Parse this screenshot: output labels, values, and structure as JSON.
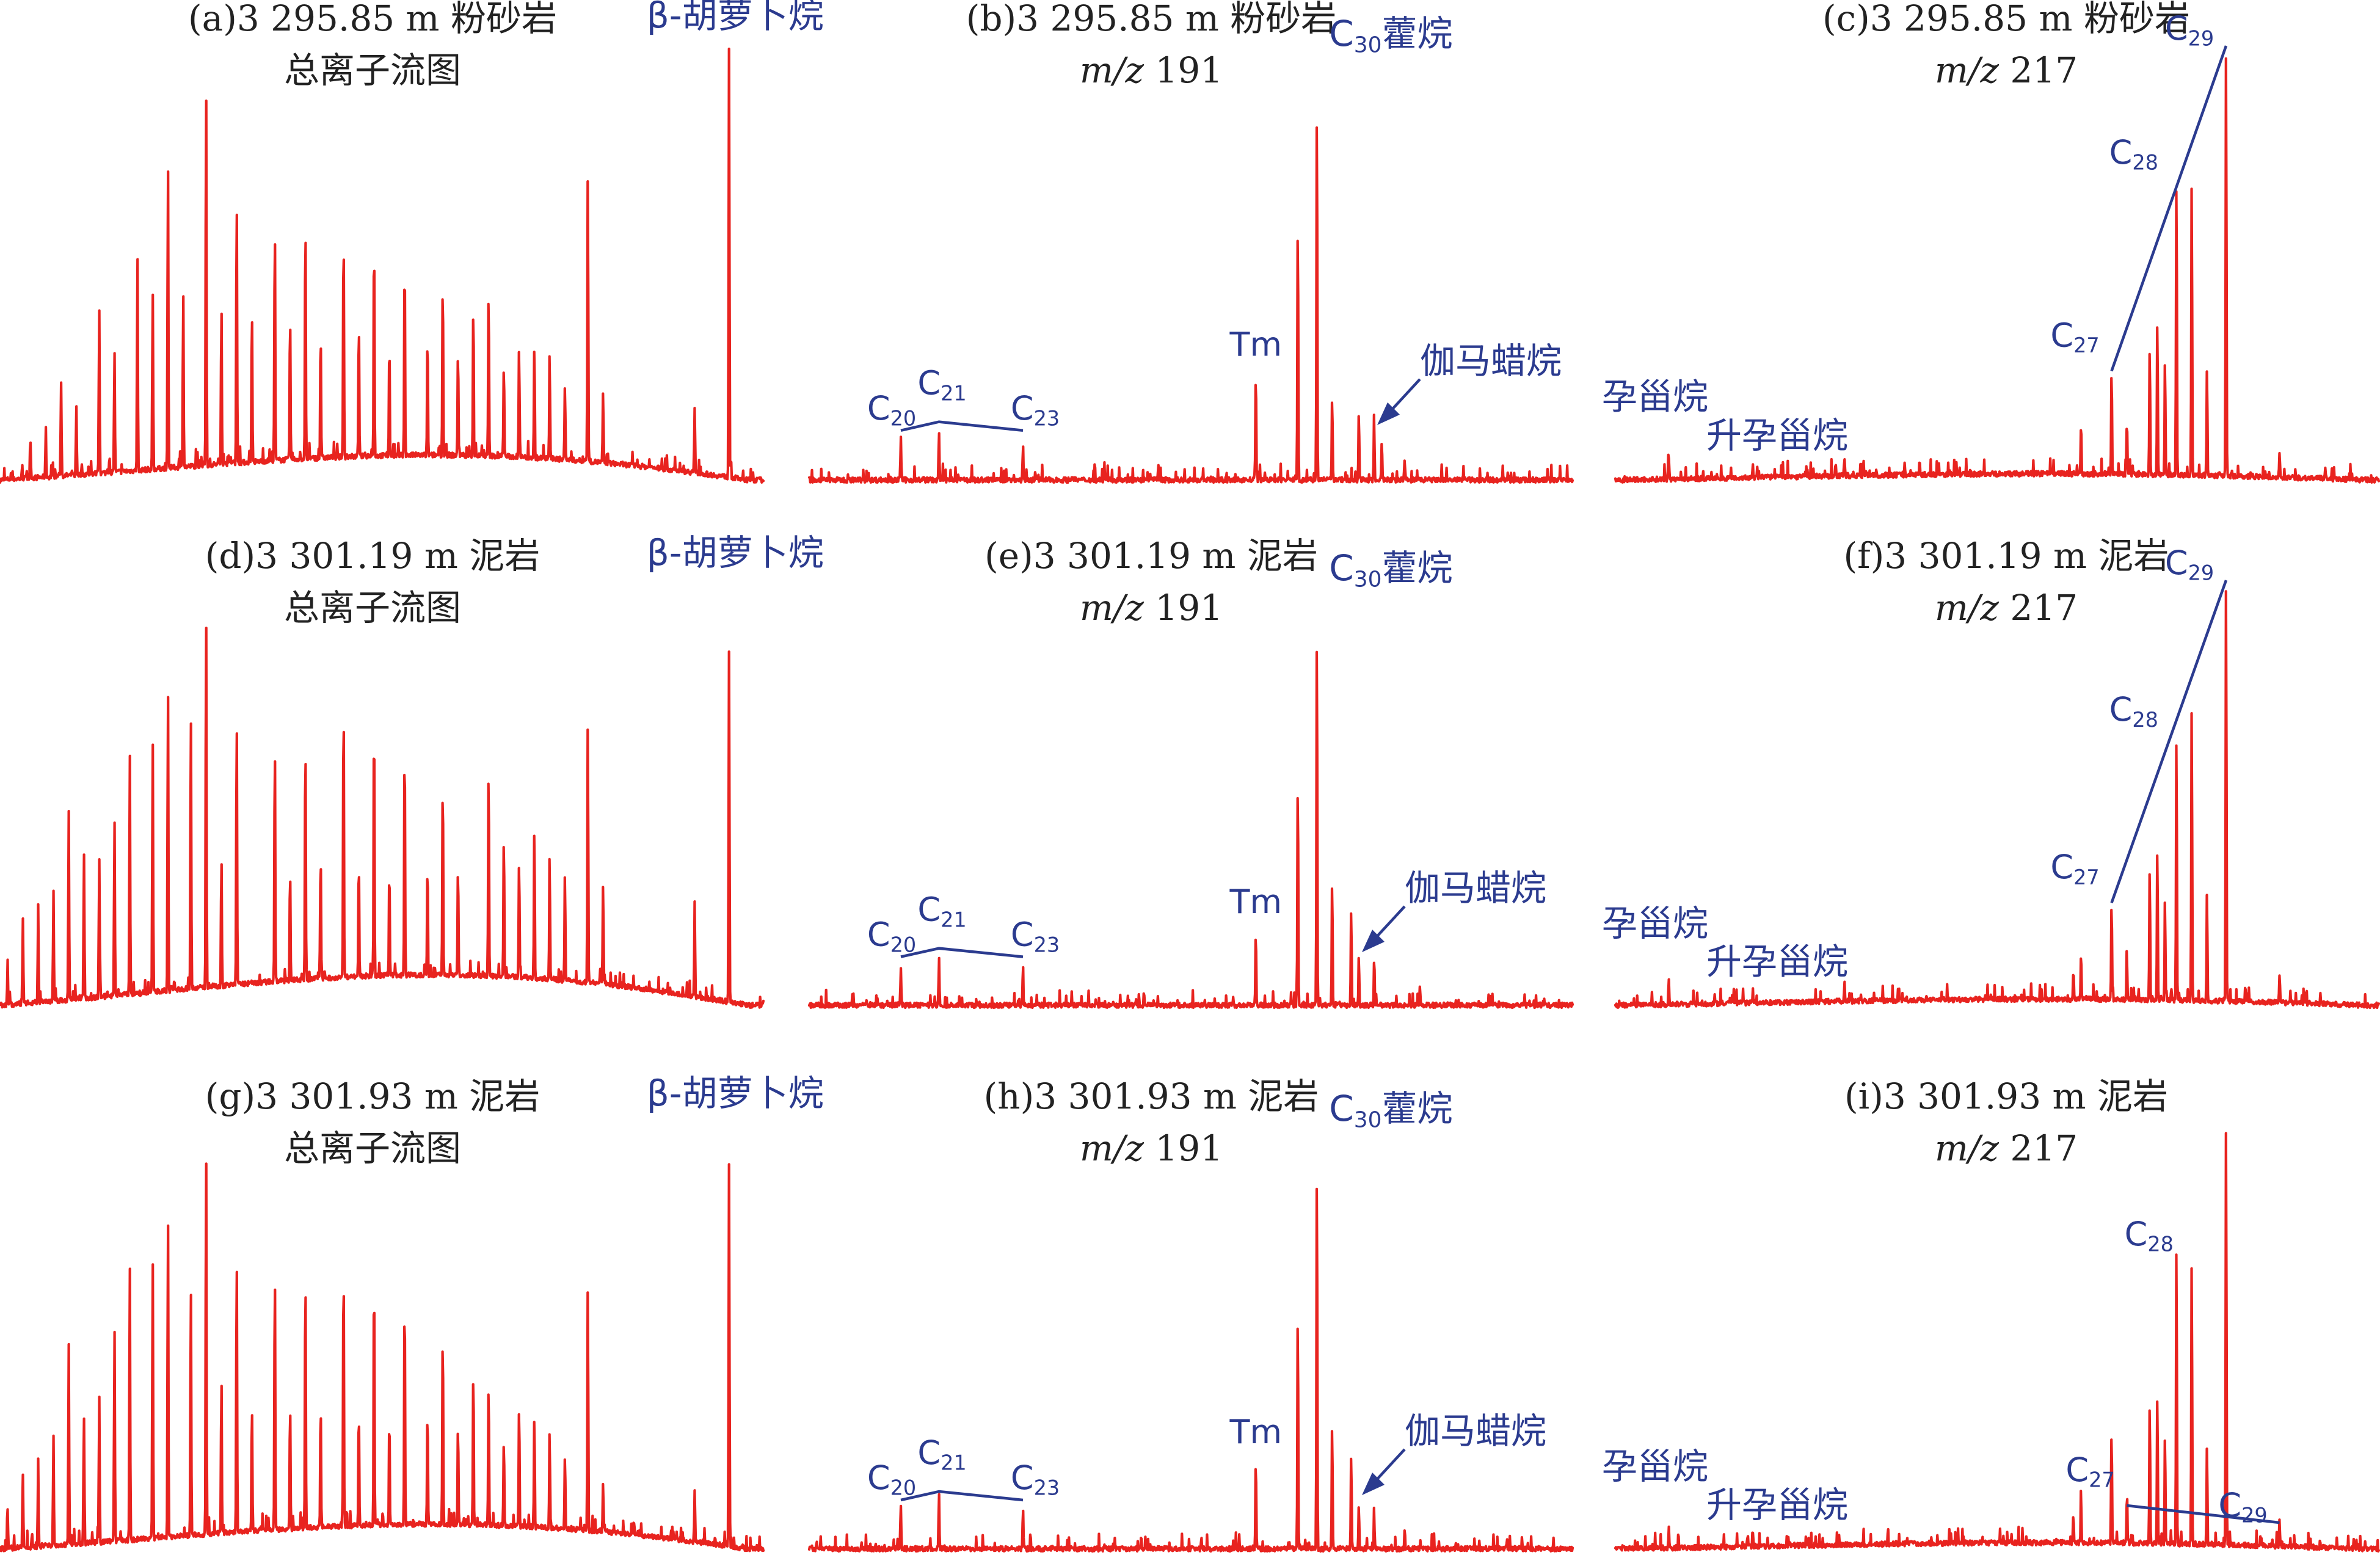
{
  "colors": {
    "trace": "#e8231f",
    "annotation": "#2b3b8f",
    "text": "#222222"
  },
  "chart_data": [
    {
      "id": "a",
      "type": "line",
      "kind": "tic",
      "title": "(a)3 295.85 m 粉砂岩",
      "subtitle": "总离子流图",
      "annotations": {
        "peak_label": "β-胡萝卜烷"
      },
      "series": [
        {
          "peaks": [
            [
              0.04,
              0.08
            ],
            [
              0.06,
              0.11
            ],
            [
              0.08,
              0.22
            ],
            [
              0.1,
              0.16
            ],
            [
              0.13,
              0.38
            ],
            [
              0.15,
              0.28
            ],
            [
              0.18,
              0.5
            ],
            [
              0.2,
              0.42
            ],
            [
              0.22,
              0.72
            ],
            [
              0.24,
              0.4
            ],
            [
              0.27,
              0.9
            ],
            [
              0.29,
              0.38
            ],
            [
              0.31,
              0.63
            ],
            [
              0.33,
              0.35
            ],
            [
              0.36,
              0.56
            ],
            [
              0.38,
              0.34
            ],
            [
              0.4,
              0.57
            ],
            [
              0.42,
              0.3
            ],
            [
              0.45,
              0.54
            ],
            [
              0.47,
              0.3
            ],
            [
              0.49,
              0.53
            ],
            [
              0.51,
              0.27
            ],
            [
              0.53,
              0.47
            ],
            [
              0.56,
              0.28
            ],
            [
              0.58,
              0.42
            ],
            [
              0.6,
              0.25
            ],
            [
              0.62,
              0.36
            ],
            [
              0.64,
              0.39
            ],
            [
              0.66,
              0.22
            ],
            [
              0.68,
              0.25
            ],
            [
              0.7,
              0.26
            ],
            [
              0.72,
              0.25
            ],
            [
              0.74,
              0.18
            ],
            [
              0.77,
              0.68
            ],
            [
              0.79,
              0.16
            ],
            [
              0.91,
              0.15
            ],
            [
              0.955,
              1.0
            ]
          ],
          "hump": 0.08
        }
      ]
    },
    {
      "id": "b",
      "type": "line",
      "kind": "m191",
      "title": "(b)3 295.85 m 粉砂岩",
      "subtitle_italic": "m/z",
      "subtitle_rest": " 191",
      "annotations": {
        "c20": "C20",
        "c21": "C21",
        "c23": "C23",
        "tm": "Tm",
        "c30": "C30藿烷",
        "gammacerane": "伽马蜡烷"
      },
      "series": [
        {
          "peaks": [
            [
              0.12,
              0.08
            ],
            [
              0.17,
              0.11
            ],
            [
              0.28,
              0.08
            ],
            [
              0.585,
              0.25
            ],
            [
              0.64,
              0.62
            ],
            [
              0.665,
              0.9
            ],
            [
              0.685,
              0.2
            ],
            [
              0.72,
              0.16
            ],
            [
              0.74,
              0.12
            ],
            [
              0.75,
              0.09
            ],
            [
              0.78,
              0.05
            ]
          ],
          "hump": 0.0
        }
      ]
    },
    {
      "id": "c",
      "type": "line",
      "kind": "m217",
      "title": "(c)3 295.85 m 粉砂岩",
      "subtitle_italic": "m/z",
      "subtitle_rest": " 217",
      "annotations": {
        "pregnane": "孕甾烷",
        "homopregnane": "升孕甾烷",
        "c27": "C27",
        "c28": "C28",
        "c29": "C29"
      },
      "series": [
        {
          "peaks": [
            [
              0.07,
              0.05
            ],
            [
              0.18,
              0.03
            ],
            [
              0.25,
              0.02
            ],
            [
              0.3,
              0.04
            ],
            [
              0.61,
              0.12
            ],
            [
              0.65,
              0.25
            ],
            [
              0.67,
              0.12
            ],
            [
              0.7,
              0.3
            ],
            [
              0.71,
              0.36
            ],
            [
              0.72,
              0.27
            ],
            [
              0.735,
              0.7
            ],
            [
              0.755,
              0.7
            ],
            [
              0.775,
              0.25
            ],
            [
              0.8,
              1.0
            ],
            [
              0.87,
              0.06
            ],
            [
              0.93,
              0.03
            ]
          ],
          "hump": 0.02
        }
      ]
    },
    {
      "id": "d",
      "type": "line",
      "kind": "tic",
      "title": "(d)3 301.19 m 泥岩",
      "subtitle": "总离子流图",
      "annotations": {
        "peak_label": "β-胡萝卜烷"
      },
      "series": [
        {
          "peaks": [
            [
              0.01,
              0.1
            ],
            [
              0.03,
              0.2
            ],
            [
              0.05,
              0.23
            ],
            [
              0.07,
              0.26
            ],
            [
              0.09,
              0.45
            ],
            [
              0.11,
              0.34
            ],
            [
              0.13,
              0.33
            ],
            [
              0.15,
              0.42
            ],
            [
              0.17,
              0.58
            ],
            [
              0.2,
              0.6
            ],
            [
              0.22,
              0.72
            ],
            [
              0.25,
              0.66
            ],
            [
              0.27,
              0.9
            ],
            [
              0.29,
              0.31
            ],
            [
              0.31,
              0.64
            ],
            [
              0.36,
              0.58
            ],
            [
              0.38,
              0.27
            ],
            [
              0.4,
              0.59
            ],
            [
              0.42,
              0.3
            ],
            [
              0.45,
              0.67
            ],
            [
              0.47,
              0.28
            ],
            [
              0.49,
              0.64
            ],
            [
              0.51,
              0.26
            ],
            [
              0.53,
              0.57
            ],
            [
              0.56,
              0.27
            ],
            [
              0.58,
              0.48
            ],
            [
              0.6,
              0.26
            ],
            [
              0.64,
              0.51
            ],
            [
              0.66,
              0.34
            ],
            [
              0.68,
              0.28
            ],
            [
              0.7,
              0.36
            ],
            [
              0.72,
              0.3
            ],
            [
              0.74,
              0.26
            ],
            [
              0.77,
              0.62
            ],
            [
              0.79,
              0.24
            ],
            [
              0.91,
              0.22
            ],
            [
              0.955,
              0.83
            ]
          ],
          "hump": 0.1
        }
      ]
    },
    {
      "id": "e",
      "type": "line",
      "kind": "m191",
      "title": "(e)3 301.19 m 泥岩",
      "subtitle_italic": "m/z",
      "subtitle_rest": " 191",
      "annotations": {
        "c20": "C20",
        "c21": "C21",
        "c23": "C23",
        "tm": "Tm",
        "c30": "C30藿烷",
        "gammacerane": "伽马蜡烷"
      },
      "series": [
        {
          "peaks": [
            [
              0.12,
              0.09
            ],
            [
              0.17,
              0.11
            ],
            [
              0.28,
              0.09
            ],
            [
              0.585,
              0.18
            ],
            [
              0.64,
              0.55
            ],
            [
              0.665,
              0.9
            ],
            [
              0.685,
              0.3
            ],
            [
              0.71,
              0.23
            ],
            [
              0.72,
              0.12
            ],
            [
              0.74,
              0.09
            ],
            [
              0.8,
              0.04
            ]
          ],
          "hump": 0.0
        }
      ]
    },
    {
      "id": "f",
      "type": "line",
      "kind": "m217",
      "title": "(f)3 301.19 m 泥岩",
      "subtitle_italic": "m/z",
      "subtitle_rest": " 217",
      "annotations": {
        "pregnane": "孕甾烷",
        "homopregnane": "升孕甾烷",
        "c27": "C27",
        "c28": "C28",
        "c29": "C29"
      },
      "series": [
        {
          "peaks": [
            [
              0.07,
              0.06
            ],
            [
              0.18,
              0.02
            ],
            [
              0.3,
              0.03
            ],
            [
              0.6,
              0.07
            ],
            [
              0.61,
              0.11
            ],
            [
              0.65,
              0.24
            ],
            [
              0.67,
              0.1
            ],
            [
              0.7,
              0.32
            ],
            [
              0.71,
              0.37
            ],
            [
              0.72,
              0.24
            ],
            [
              0.735,
              0.64
            ],
            [
              0.755,
              0.71
            ],
            [
              0.775,
              0.26
            ],
            [
              0.8,
              1.0
            ],
            [
              0.87,
              0.07
            ]
          ],
          "hump": 0.02
        }
      ]
    },
    {
      "id": "g",
      "type": "line",
      "kind": "tic",
      "title": "(g)3 301.93 m 泥岩",
      "subtitle": "总离子流图",
      "annotations": {
        "peak_label": "β-胡萝卜烷"
      },
      "series": [
        {
          "peaks": [
            [
              0.01,
              0.09
            ],
            [
              0.03,
              0.17
            ],
            [
              0.05,
              0.2
            ],
            [
              0.07,
              0.26
            ],
            [
              0.09,
              0.47
            ],
            [
              0.11,
              0.3
            ],
            [
              0.13,
              0.34
            ],
            [
              0.15,
              0.5
            ],
            [
              0.17,
              0.65
            ],
            [
              0.2,
              0.66
            ],
            [
              0.22,
              0.76
            ],
            [
              0.25,
              0.6
            ],
            [
              0.27,
              0.92
            ],
            [
              0.29,
              0.37
            ],
            [
              0.31,
              0.66
            ],
            [
              0.33,
              0.3
            ],
            [
              0.36,
              0.63
            ],
            [
              0.38,
              0.3
            ],
            [
              0.4,
              0.62
            ],
            [
              0.42,
              0.3
            ],
            [
              0.45,
              0.64
            ],
            [
              0.47,
              0.28
            ],
            [
              0.49,
              0.62
            ],
            [
              0.51,
              0.26
            ],
            [
              0.53,
              0.56
            ],
            [
              0.56,
              0.27
            ],
            [
              0.58,
              0.47
            ],
            [
              0.6,
              0.24
            ],
            [
              0.62,
              0.38
            ],
            [
              0.64,
              0.34
            ],
            [
              0.66,
              0.21
            ],
            [
              0.68,
              0.29
            ],
            [
              0.7,
              0.26
            ],
            [
              0.72,
              0.23
            ],
            [
              0.74,
              0.17
            ],
            [
              0.77,
              0.58
            ],
            [
              0.79,
              0.12
            ],
            [
              0.91,
              0.12
            ],
            [
              0.955,
              0.9
            ]
          ],
          "hump": 0.08
        }
      ]
    },
    {
      "id": "h",
      "type": "line",
      "kind": "m191",
      "title": "(h)3 301.93 m 泥岩",
      "subtitle_italic": "m/z",
      "subtitle_rest": " 191",
      "annotations": {
        "c20": "C20",
        "c21": "C21",
        "c23": "C23",
        "tm": "Tm",
        "c30": "C30藿烷",
        "gammacerane": "伽马蜡烷"
      },
      "series": [
        {
          "peaks": [
            [
              0.12,
              0.1
            ],
            [
              0.17,
              0.13
            ],
            [
              0.28,
              0.09
            ],
            [
              0.585,
              0.21
            ],
            [
              0.64,
              0.54
            ],
            [
              0.665,
              0.93
            ],
            [
              0.685,
              0.3
            ],
            [
              0.71,
              0.23
            ],
            [
              0.72,
              0.1
            ],
            [
              0.74,
              0.08
            ],
            [
              0.78,
              0.05
            ]
          ],
          "hump": 0.0
        }
      ]
    },
    {
      "id": "i",
      "type": "line",
      "kind": "m217",
      "title": "(i)3 301.93 m 泥岩",
      "subtitle_italic": "m/z",
      "subtitle_rest": " 217",
      "annotations": {
        "pregnane": "孕甾烷",
        "homopregnane": "升孕甾烷",
        "c27": "C27",
        "c28": "C28",
        "c29": "C29"
      },
      "series": [
        {
          "peaks": [
            [
              0.07,
              0.05
            ],
            [
              0.18,
              0.03
            ],
            [
              0.6,
              0.07
            ],
            [
              0.61,
              0.11
            ],
            [
              0.65,
              0.27
            ],
            [
              0.67,
              0.1
            ],
            [
              0.7,
              0.34
            ],
            [
              0.71,
              0.36
            ],
            [
              0.72,
              0.26
            ],
            [
              0.735,
              0.72
            ],
            [
              0.755,
              0.68
            ],
            [
              0.775,
              0.24
            ],
            [
              0.8,
              1.0
            ],
            [
              0.87,
              0.06
            ]
          ],
          "hump": 0.02
        }
      ]
    }
  ]
}
